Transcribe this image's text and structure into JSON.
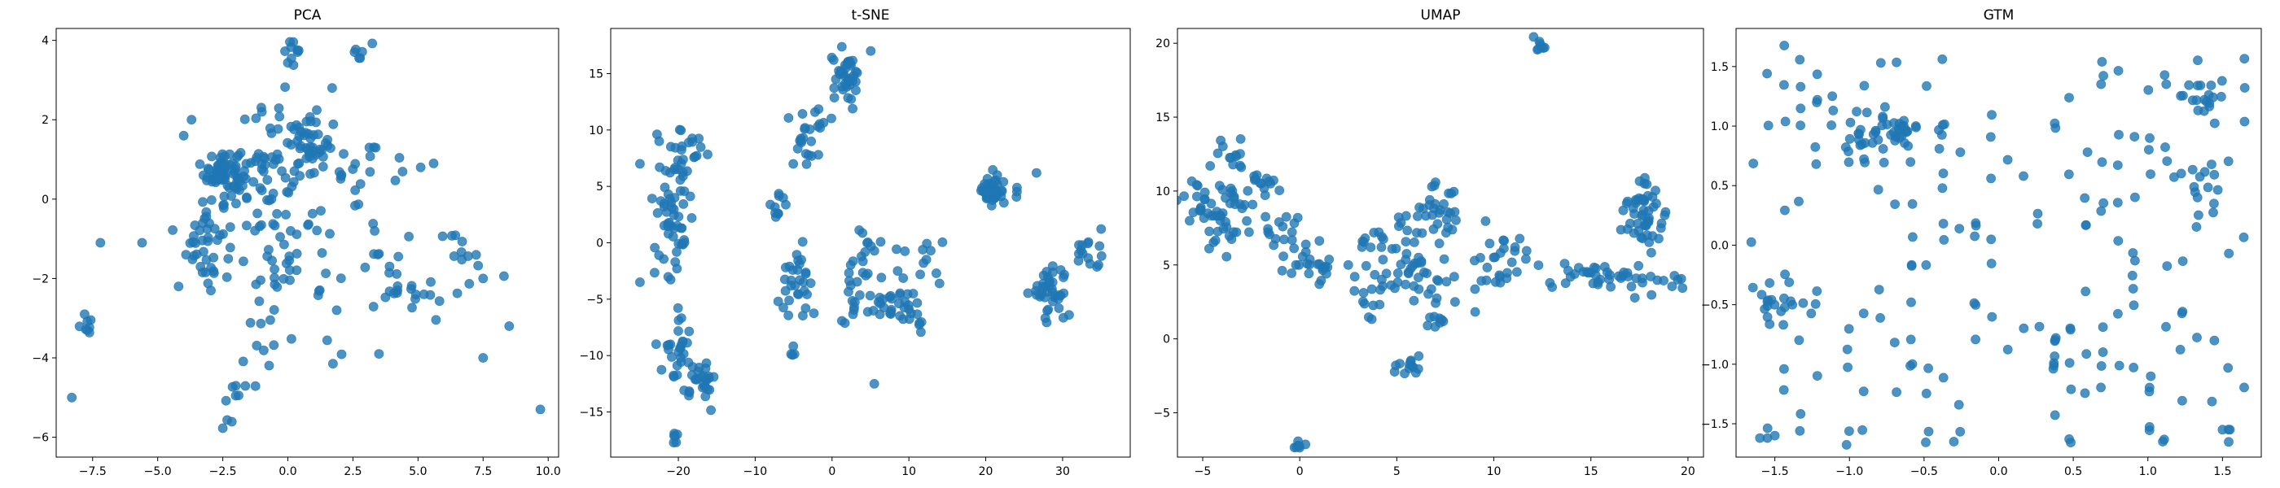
{
  "figure": {
    "point_color": "#1f77b4",
    "point_opacity": 0.8
  },
  "chart_data": [
    {
      "type": "scatter",
      "title": "PCA",
      "xlabel": "",
      "ylabel": "",
      "xlim": [
        -8.9,
        10.4
      ],
      "ylim": [
        -6.5,
        4.3
      ],
      "xticks": [
        -7.5,
        -5.0,
        -2.5,
        0.0,
        2.5,
        5.0,
        7.5,
        10.0
      ],
      "xtick_labels": [
        "−7.5",
        "−5.0",
        "−2.5",
        "0.0",
        "2.5",
        "5.0",
        "7.5",
        "10.0"
      ],
      "yticks": [
        -6,
        -4,
        -2,
        0,
        2,
        4
      ],
      "ytick_labels": [
        "−6",
        "−4",
        "−2",
        "0",
        "2",
        "4"
      ],
      "grid": false,
      "clusters": [
        {
          "x": -2.5,
          "y": 0.7,
          "sx": 0.35,
          "sy": 0.3,
          "n": 70
        },
        {
          "x": -3.2,
          "y": -1.0,
          "sx": 0.35,
          "sy": 0.6,
          "n": 40
        },
        {
          "x": -1.5,
          "y": 0.3,
          "sx": 0.6,
          "sy": 0.8,
          "n": 30
        },
        {
          "x": 0.8,
          "y": 1.4,
          "sx": 0.4,
          "sy": 0.3,
          "n": 35
        },
        {
          "x": 0.0,
          "y": 0.5,
          "sx": 0.9,
          "sy": 1.0,
          "n": 45
        },
        {
          "x": 0.0,
          "y": -1.5,
          "sx": 1.0,
          "sy": 0.8,
          "n": 35
        },
        {
          "x": 0.2,
          "y": 3.7,
          "sx": 0.2,
          "sy": 0.2,
          "n": 10
        },
        {
          "x": 2.9,
          "y": 3.6,
          "sx": 0.2,
          "sy": 0.15,
          "n": 6
        },
        {
          "x": 2.8,
          "y": 1.0,
          "sx": 0.7,
          "sy": 0.7,
          "n": 20
        },
        {
          "x": 4.5,
          "y": -1.8,
          "sx": 1.0,
          "sy": 0.6,
          "n": 30
        },
        {
          "x": 6.8,
          "y": -1.4,
          "sx": 0.5,
          "sy": 0.3,
          "n": 12
        },
        {
          "x": -7.7,
          "y": -3.1,
          "sx": 0.2,
          "sy": 0.15,
          "n": 8
        },
        {
          "x": -1.8,
          "y": -4.7,
          "sx": 0.2,
          "sy": 0.3,
          "n": 8
        },
        {
          "x": -2.3,
          "y": -5.7,
          "sx": 0.1,
          "sy": 0.1,
          "n": 3
        },
        {
          "x": -0.8,
          "y": -3.6,
          "sx": 0.5,
          "sy": 0.4,
          "n": 8
        },
        {
          "x": 2.0,
          "y": -3.8,
          "sx": 0.3,
          "sy": 0.2,
          "n": 3
        }
      ],
      "points": [
        {
          "x": -8.3,
          "y": -5.0
        },
        {
          "x": 9.7,
          "y": -5.3
        },
        {
          "x": -7.2,
          "y": -1.1
        },
        {
          "x": -5.6,
          "y": -1.1
        },
        {
          "x": 8.5,
          "y": -3.2
        },
        {
          "x": 7.5,
          "y": -4.0
        },
        {
          "x": 7.5,
          "y": -2.0
        },
        {
          "x": 5.1,
          "y": 0.8
        },
        {
          "x": 5.6,
          "y": 0.9
        },
        {
          "x": -3.7,
          "y": 2.0
        },
        {
          "x": -4.0,
          "y": 1.6
        },
        {
          "x": -4.2,
          "y": -2.2
        },
        {
          "x": 3.5,
          "y": -3.9
        },
        {
          "x": -1.0,
          "y": 2.2
        },
        {
          "x": 1.7,
          "y": 2.8
        }
      ]
    },
    {
      "type": "scatter",
      "title": "t-SNE",
      "xlabel": "",
      "ylabel": "",
      "xlim": [
        -28.8,
        38.8
      ],
      "ylim": [
        -19.0,
        19.0
      ],
      "xticks": [
        -20,
        -10,
        0,
        10,
        20,
        30
      ],
      "xtick_labels": [
        "−20",
        "−10",
        "0",
        "10",
        "20",
        "30"
      ],
      "yticks": [
        -15,
        -10,
        -5,
        0,
        5,
        10,
        15
      ],
      "ytick_labels": [
        "−15",
        "−10",
        "−5",
        "0",
        "5",
        "10",
        "15"
      ],
      "grid": false,
      "clusters": [
        {
          "x": -20.5,
          "y": 3.0,
          "sx": 1.2,
          "sy": 3.0,
          "n": 60
        },
        {
          "x": -18.5,
          "y": 8.3,
          "sx": 1.5,
          "sy": 0.8,
          "n": 14
        },
        {
          "x": -20.5,
          "y": -9.5,
          "sx": 1.0,
          "sy": 1.8,
          "n": 25
        },
        {
          "x": -17.0,
          "y": -12.0,
          "sx": 1.0,
          "sy": 0.8,
          "n": 30
        },
        {
          "x": -20.5,
          "y": -17.2,
          "sx": 0.3,
          "sy": 0.3,
          "n": 6
        },
        {
          "x": 2.0,
          "y": 15.0,
          "sx": 1.0,
          "sy": 1.2,
          "n": 40
        },
        {
          "x": -1.0,
          "y": 11.0,
          "sx": 1.5,
          "sy": 0.5,
          "n": 10
        },
        {
          "x": -3.5,
          "y": 8.5,
          "sx": 0.8,
          "sy": 1.0,
          "n": 15
        },
        {
          "x": -7.5,
          "y": 3.5,
          "sx": 0.6,
          "sy": 1.0,
          "n": 10
        },
        {
          "x": -5.0,
          "y": -3.5,
          "sx": 1.5,
          "sy": 2.0,
          "n": 30
        },
        {
          "x": 3.5,
          "y": -4.0,
          "sx": 1.5,
          "sy": 2.5,
          "n": 35
        },
        {
          "x": 9.0,
          "y": -5.5,
          "sx": 1.5,
          "sy": 1.0,
          "n": 25
        },
        {
          "x": 10.0,
          "y": -1.5,
          "sx": 2.0,
          "sy": 1.0,
          "n": 12
        },
        {
          "x": 20.5,
          "y": 4.5,
          "sx": 0.7,
          "sy": 0.6,
          "n": 35
        },
        {
          "x": 23.0,
          "y": 5.5,
          "sx": 1.5,
          "sy": 1.2,
          "n": 10
        },
        {
          "x": 28.5,
          "y": -4.5,
          "sx": 1.2,
          "sy": 1.2,
          "n": 40
        },
        {
          "x": 33.0,
          "y": -0.8,
          "sx": 1.5,
          "sy": 0.8,
          "n": 15
        },
        {
          "x": 11.5,
          "y": -7.0,
          "sx": 0.3,
          "sy": 0.4,
          "n": 5
        },
        {
          "x": -5.0,
          "y": -9.7,
          "sx": 0.3,
          "sy": 0.3,
          "n": 4
        }
      ],
      "points": [
        {
          "x": -25.0,
          "y": -3.5
        },
        {
          "x": 5.5,
          "y": -12.5
        },
        {
          "x": -22.5,
          "y": 9.0
        },
        {
          "x": -25.0,
          "y": 7.0
        },
        {
          "x": 0.5,
          "y": 14.5
        }
      ]
    },
    {
      "type": "scatter",
      "title": "UMAP",
      "xlabel": "",
      "ylabel": "",
      "xlim": [
        -6.3,
        20.8
      ],
      "ylim": [
        -8.0,
        21.0
      ],
      "xticks": [
        -5,
        0,
        5,
        10,
        15,
        20
      ],
      "xtick_labels": [
        "−5",
        "0",
        "5",
        "10",
        "15",
        "20"
      ],
      "yticks": [
        -5,
        0,
        5,
        10,
        15,
        20
      ],
      "ytick_labels": [
        "−5",
        "0",
        "5",
        "10",
        "15",
        "20"
      ],
      "grid": false,
      "clusters": [
        {
          "x": -4.0,
          "y": 9.0,
          "sx": 1.0,
          "sy": 1.4,
          "n": 60
        },
        {
          "x": -3.5,
          "y": 12.5,
          "sx": 0.4,
          "sy": 0.5,
          "n": 10
        },
        {
          "x": -1.8,
          "y": 10.5,
          "sx": 0.4,
          "sy": 0.4,
          "n": 12
        },
        {
          "x": -1.0,
          "y": 7.2,
          "sx": 0.6,
          "sy": 0.5,
          "n": 15
        },
        {
          "x": 0.8,
          "y": 5.0,
          "sx": 0.8,
          "sy": 0.8,
          "n": 25
        },
        {
          "x": 3.7,
          "y": 3.5,
          "sx": 0.7,
          "sy": 1.0,
          "n": 18
        },
        {
          "x": 3.8,
          "y": 6.5,
          "sx": 0.5,
          "sy": 0.5,
          "n": 10
        },
        {
          "x": 5.7,
          "y": 6.0,
          "sx": 0.5,
          "sy": 1.3,
          "n": 25
        },
        {
          "x": 7.2,
          "y": 8.5,
          "sx": 0.6,
          "sy": 1.2,
          "n": 30
        },
        {
          "x": 6.8,
          "y": 4.0,
          "sx": 0.6,
          "sy": 1.0,
          "n": 15
        },
        {
          "x": 7.0,
          "y": 1.2,
          "sx": 0.3,
          "sy": 0.2,
          "n": 8
        },
        {
          "x": 10.0,
          "y": 4.5,
          "sx": 0.8,
          "sy": 1.0,
          "n": 20
        },
        {
          "x": 11.0,
          "y": 6.3,
          "sx": 0.5,
          "sy": 0.3,
          "n": 8
        },
        {
          "x": 15.0,
          "y": 4.3,
          "sx": 1.0,
          "sy": 0.5,
          "n": 25
        },
        {
          "x": 17.8,
          "y": 8.5,
          "sx": 0.6,
          "sy": 1.2,
          "n": 50
        },
        {
          "x": 18.0,
          "y": 4.0,
          "sx": 1.2,
          "sy": 0.6,
          "n": 20
        },
        {
          "x": 12.3,
          "y": 19.8,
          "sx": 0.2,
          "sy": 0.25,
          "n": 8
        },
        {
          "x": 5.6,
          "y": -1.9,
          "sx": 0.3,
          "sy": 0.3,
          "n": 14
        },
        {
          "x": 0.1,
          "y": -7.1,
          "sx": 0.25,
          "sy": 0.15,
          "n": 8
        }
      ],
      "points": [
        {
          "x": 2.5,
          "y": 5.0
        },
        {
          "x": 13.0,
          "y": 3.5
        },
        {
          "x": 8.0,
          "y": 2.5
        }
      ]
    },
    {
      "type": "scatter",
      "title": "GTM",
      "xlabel": "",
      "ylabel": "",
      "xlim": [
        -1.76,
        1.76
      ],
      "ylim": [
        -1.78,
        1.82
      ],
      "xticks": [
        -1.5,
        -1.0,
        -0.5,
        0.0,
        0.5,
        1.0,
        1.5
      ],
      "xtick_labels": [
        "−1.5",
        "−1.0",
        "−0.5",
        "0.0",
        "0.5",
        "1.0",
        "1.5"
      ],
      "yticks": [
        -1.5,
        -1.0,
        -0.5,
        0.0,
        0.5,
        1.0,
        1.5
      ],
      "ytick_labels": [
        "−1.5",
        "−1.0",
        "−0.5",
        "0.0",
        "0.5",
        "1.0",
        "1.5"
      ],
      "grid": false,
      "grid_scatter": {
        "xmin": -1.65,
        "xmax": 1.65,
        "ymin": -1.65,
        "ymax": 1.65,
        "step": 0.1065,
        "n": 200
      },
      "clusters": [
        {
          "x": -0.75,
          "y": 0.95,
          "sx": 0.15,
          "sy": 0.1,
          "n": 45
        },
        {
          "x": 1.4,
          "y": 1.25,
          "sx": 0.08,
          "sy": 0.08,
          "n": 15
        },
        {
          "x": 1.35,
          "y": 0.55,
          "sx": 0.08,
          "sy": 0.08,
          "n": 10
        },
        {
          "x": -1.4,
          "y": -0.5,
          "sx": 0.1,
          "sy": 0.15,
          "n": 15
        }
      ],
      "points": [
        {
          "x": -1.6,
          "y": -1.62
        },
        {
          "x": -1.55,
          "y": -1.62
        },
        {
          "x": -1.5,
          "y": -1.6
        },
        {
          "x": 1.5,
          "y": -1.55
        },
        {
          "x": 1.55,
          "y": -1.55
        },
        {
          "x": 1.1,
          "y": -1.65
        },
        {
          "x": -0.3,
          "y": -1.65
        }
      ]
    }
  ]
}
